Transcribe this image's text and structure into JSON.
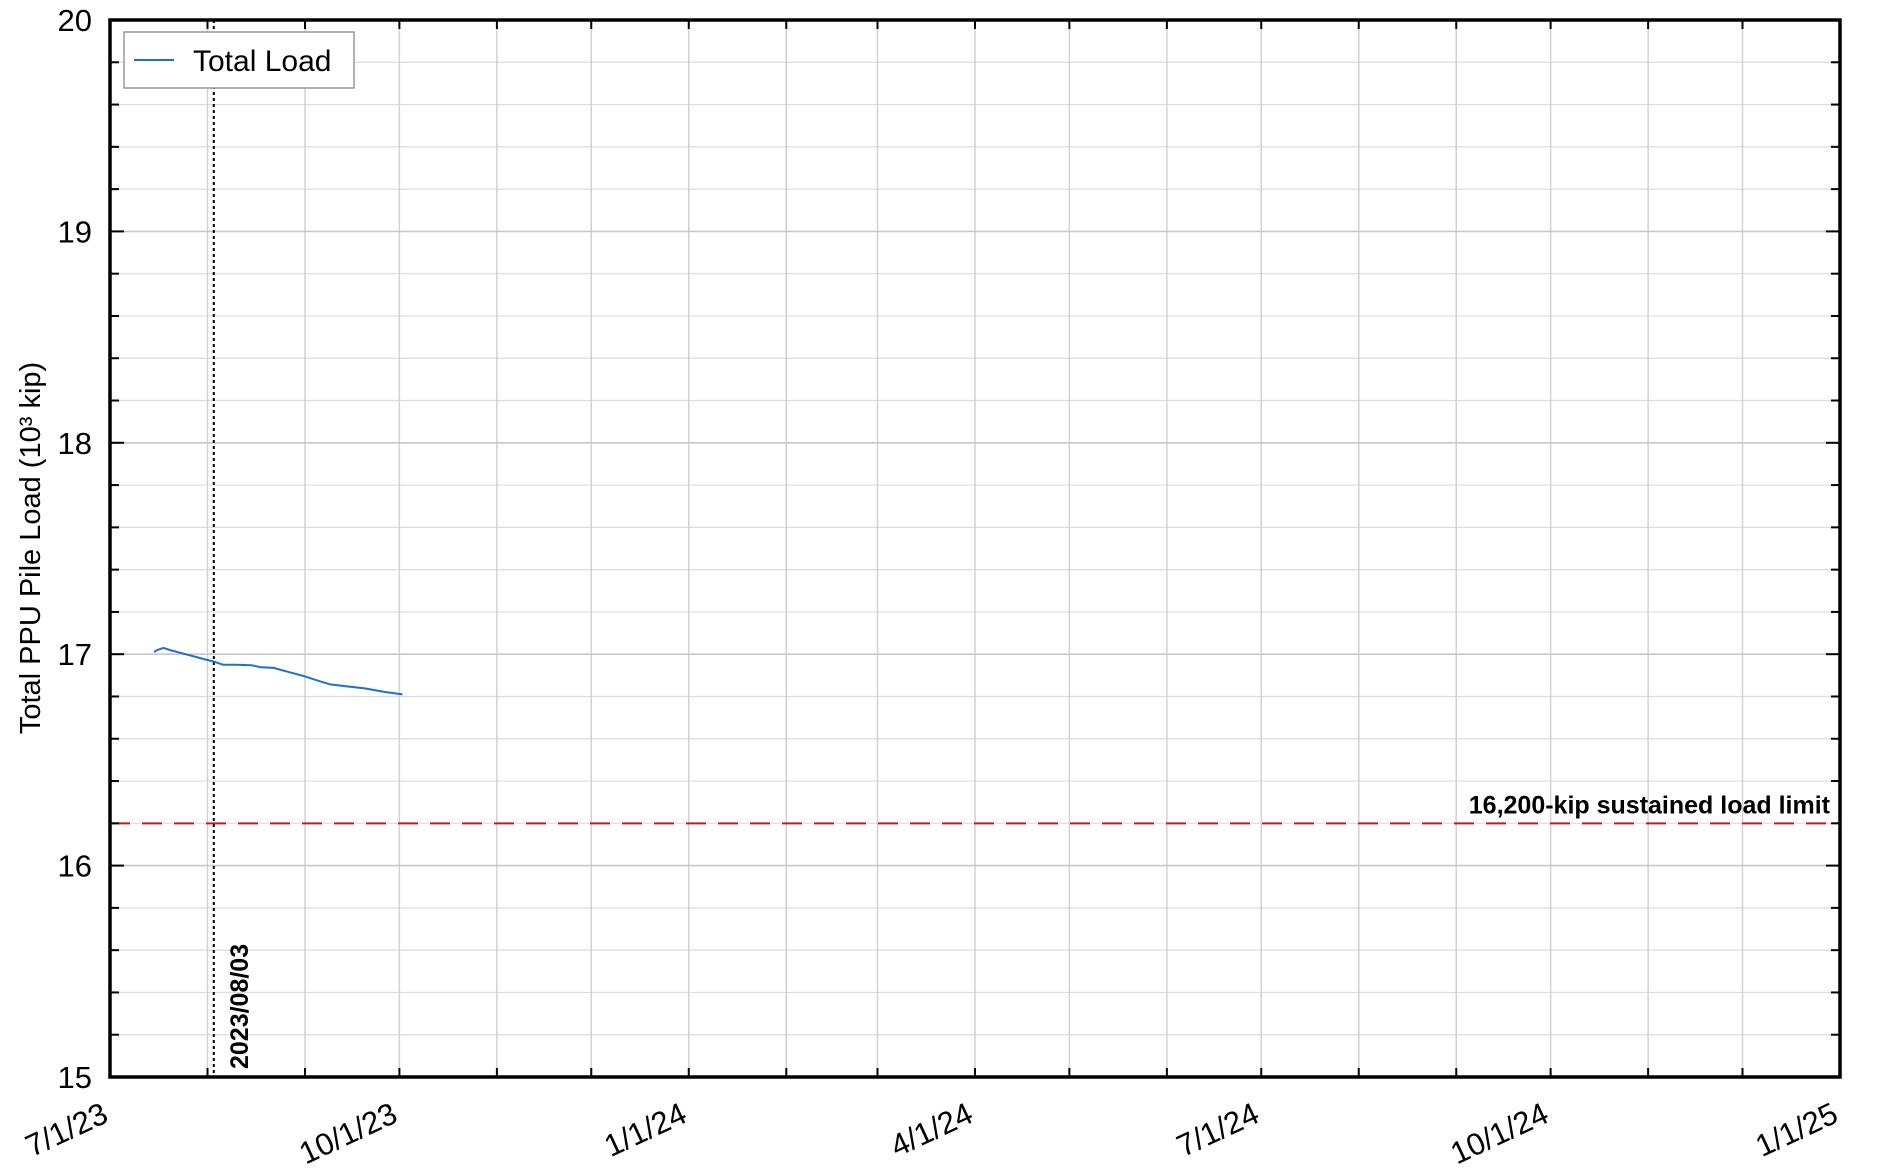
{
  "chart_data": {
    "type": "line",
    "title": "",
    "xlabel": "",
    "ylabel": "Total PPU Pile Load (10³ kip)",
    "xlim": [
      "2023-07-01",
      "2025-01-01"
    ],
    "ylim": [
      15,
      20
    ],
    "x_ticks": [
      {
        "date": "2023-07-01",
        "label": "7/1/23"
      },
      {
        "date": "2023-10-01",
        "label": "10/1/23"
      },
      {
        "date": "2024-01-01",
        "label": "1/1/24"
      },
      {
        "date": "2024-04-01",
        "label": "4/1/24"
      },
      {
        "date": "2024-07-01",
        "label": "7/1/24"
      },
      {
        "date": "2024-10-01",
        "label": "10/1/24"
      },
      {
        "date": "2025-01-01",
        "label": "1/1/25"
      }
    ],
    "y_ticks": [
      {
        "value": 15,
        "label": "15"
      },
      {
        "value": 16,
        "label": "16"
      },
      {
        "value": 17,
        "label": "17"
      },
      {
        "value": 18,
        "label": "18"
      },
      {
        "value": 19,
        "label": "19"
      },
      {
        "value": 20,
        "label": "20"
      }
    ],
    "grid": true,
    "legend": {
      "position": "top-left",
      "entries": [
        "Total Load"
      ]
    },
    "series": [
      {
        "name": "Total Load",
        "color": "#1f6fd0",
        "points": [
          [
            "2023-07-15",
            17.01
          ],
          [
            "2023-07-16",
            17.02
          ],
          [
            "2023-07-18",
            17.03
          ],
          [
            "2023-07-20",
            17.02
          ],
          [
            "2023-07-25",
            17.0
          ],
          [
            "2023-07-30",
            16.98
          ],
          [
            "2023-08-03",
            16.965
          ],
          [
            "2023-08-06",
            16.95
          ],
          [
            "2023-08-10",
            16.95
          ],
          [
            "2023-08-15",
            16.948
          ],
          [
            "2023-08-18",
            16.938
          ],
          [
            "2023-08-22",
            16.935
          ],
          [
            "2023-08-27",
            16.915
          ],
          [
            "2023-09-01",
            16.895
          ],
          [
            "2023-09-05",
            16.875
          ],
          [
            "2023-09-09",
            16.857
          ],
          [
            "2023-09-14",
            16.848
          ],
          [
            "2023-09-20",
            16.838
          ],
          [
            "2023-09-24",
            16.828
          ],
          [
            "2023-09-27",
            16.82
          ],
          [
            "2023-10-02",
            16.81
          ]
        ]
      }
    ],
    "reference_lines": [
      {
        "orientation": "horizontal",
        "value": 16.2,
        "label": "16,200-kip sustained load limit",
        "color": "#b22222",
        "style": "dashed"
      },
      {
        "orientation": "vertical",
        "date": "2023-08-03",
        "label": "2023/08/03",
        "color": "#000000",
        "style": "dotted"
      }
    ]
  }
}
